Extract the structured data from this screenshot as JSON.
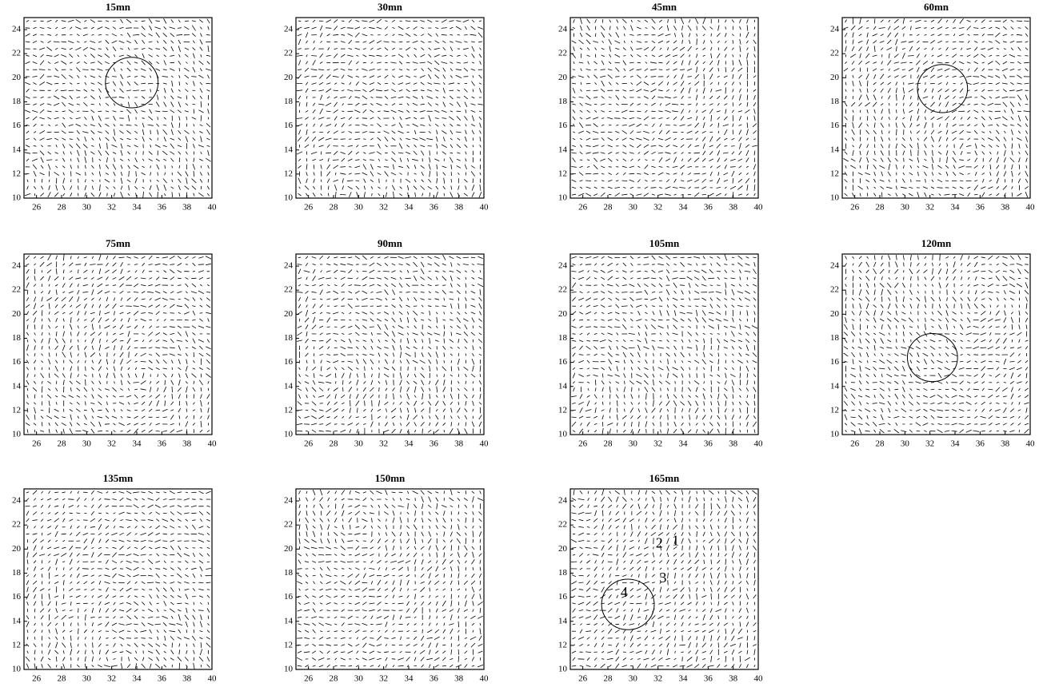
{
  "chart_data": [
    {
      "type": "vector-field",
      "title": "15mn",
      "xlim": [
        25,
        40
      ],
      "ylim": [
        10,
        25
      ],
      "xticks": [
        26,
        28,
        30,
        32,
        34,
        36,
        38,
        40
      ],
      "yticks": [
        10,
        12,
        14,
        16,
        18,
        20,
        22,
        24
      ],
      "circles": [
        {
          "x": 33.6,
          "y": 19.6,
          "r": 2.1
        }
      ]
    },
    {
      "type": "vector-field",
      "title": "30mn",
      "xlim": [
        25,
        40
      ],
      "ylim": [
        10,
        25
      ],
      "xticks": [
        26,
        28,
        30,
        32,
        34,
        36,
        38,
        40
      ],
      "yticks": [
        10,
        12,
        14,
        16,
        18,
        20,
        22,
        24
      ]
    },
    {
      "type": "vector-field",
      "title": "45mn",
      "xlim": [
        25,
        40
      ],
      "ylim": [
        10,
        25
      ],
      "xticks": [
        26,
        28,
        30,
        32,
        34,
        36,
        38,
        40
      ],
      "yticks": [
        10,
        12,
        14,
        16,
        18,
        20,
        22,
        24
      ]
    },
    {
      "type": "vector-field",
      "title": "60mn",
      "xlim": [
        25,
        40
      ],
      "ylim": [
        10,
        25
      ],
      "xticks": [
        26,
        28,
        30,
        32,
        34,
        36,
        38,
        40
      ],
      "yticks": [
        10,
        12,
        14,
        16,
        18,
        20,
        22,
        24
      ],
      "circles": [
        {
          "x": 33,
          "y": 19.1,
          "r": 2
        }
      ]
    },
    {
      "type": "vector-field",
      "title": "75mn",
      "xlim": [
        25,
        40
      ],
      "ylim": [
        10,
        25
      ],
      "xticks": [
        26,
        28,
        30,
        32,
        34,
        36,
        38,
        40
      ],
      "yticks": [
        10,
        12,
        14,
        16,
        18,
        20,
        22,
        24
      ]
    },
    {
      "type": "vector-field",
      "title": "90mn",
      "xlim": [
        25,
        40
      ],
      "ylim": [
        10,
        25
      ],
      "xticks": [
        26,
        28,
        30,
        32,
        34,
        36,
        38,
        40
      ],
      "yticks": [
        10,
        12,
        14,
        16,
        18,
        20,
        22,
        24
      ]
    },
    {
      "type": "vector-field",
      "title": "105mn",
      "xlim": [
        25,
        40
      ],
      "ylim": [
        10,
        25
      ],
      "xticks": [
        26,
        28,
        30,
        32,
        34,
        36,
        38,
        40
      ],
      "yticks": [
        10,
        12,
        14,
        16,
        18,
        20,
        22,
        24
      ]
    },
    {
      "type": "vector-field",
      "title": "120mn",
      "xlim": [
        25,
        40
      ],
      "ylim": [
        10,
        25
      ],
      "xticks": [
        26,
        28,
        30,
        32,
        34,
        36,
        38,
        40
      ],
      "yticks": [
        10,
        12,
        14,
        16,
        18,
        20,
        22,
        24
      ],
      "circles": [
        {
          "x": 32.2,
          "y": 16.4,
          "r": 2
        }
      ]
    },
    {
      "type": "vector-field",
      "title": "135mn",
      "xlim": [
        25,
        40
      ],
      "ylim": [
        10,
        25
      ],
      "xticks": [
        26,
        28,
        30,
        32,
        34,
        36,
        38,
        40
      ],
      "yticks": [
        10,
        12,
        14,
        16,
        18,
        20,
        22,
        24
      ]
    },
    {
      "type": "vector-field",
      "title": "150mn",
      "xlim": [
        25,
        40
      ],
      "ylim": [
        10,
        25
      ],
      "xticks": [
        26,
        28,
        30,
        32,
        34,
        36,
        38,
        40
      ],
      "yticks": [
        10,
        12,
        14,
        16,
        18,
        20,
        22,
        24
      ]
    },
    {
      "type": "vector-field",
      "title": "165mn",
      "xlim": [
        25,
        40
      ],
      "ylim": [
        10,
        25
      ],
      "xticks": [
        26,
        28,
        30,
        32,
        34,
        36,
        38,
        40
      ],
      "yticks": [
        10,
        12,
        14,
        16,
        18,
        20,
        22,
        24
      ],
      "circles": [
        {
          "x": 29.6,
          "y": 15.4,
          "r": 2.1
        }
      ],
      "annotations": [
        {
          "text": "1",
          "x": 33.4,
          "y": 20.6
        },
        {
          "text": "2",
          "x": 32.1,
          "y": 20.4
        },
        {
          "text": "3",
          "x": 32.4,
          "y": 17.5
        },
        {
          "text": "4",
          "x": 29.3,
          "y": 16.3
        }
      ]
    }
  ]
}
